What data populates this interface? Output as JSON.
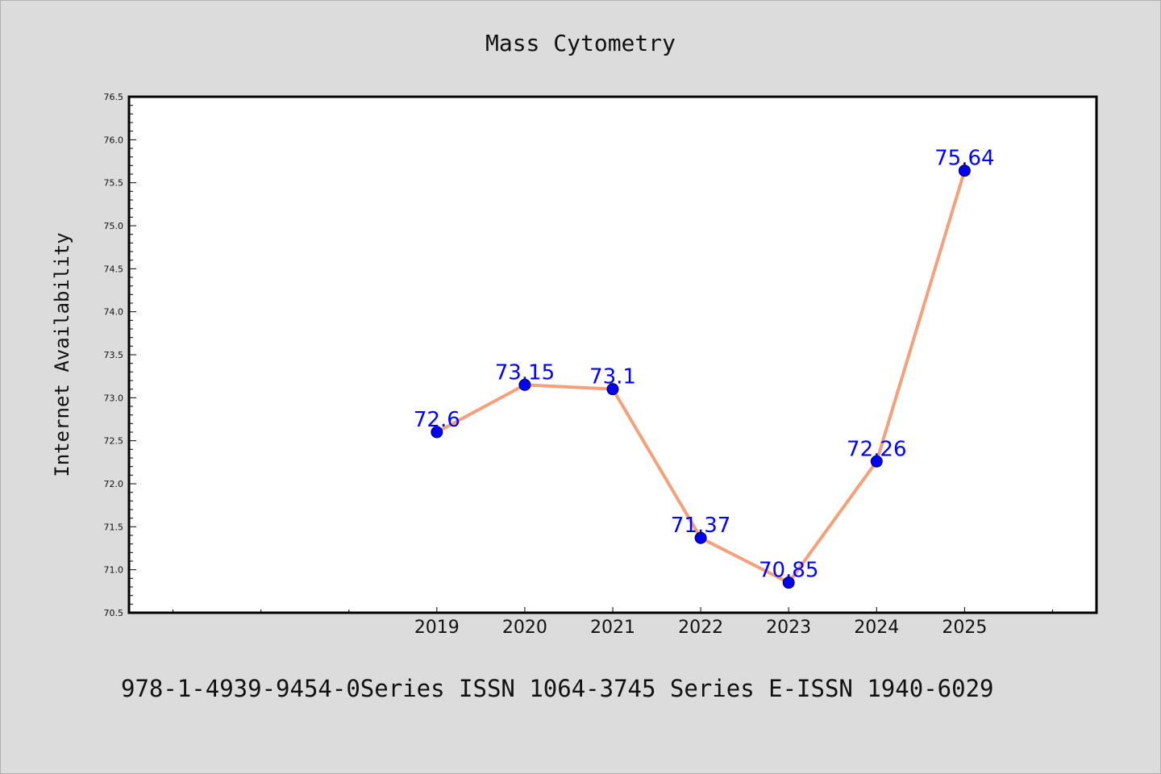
{
  "chart_data": {
    "type": "line",
    "title": "Mass Cytometry",
    "ylabel": "Internet Availability",
    "xlabel": "",
    "x": [
      "2019",
      "2020",
      "2021",
      "2022",
      "2023",
      "2024",
      "2025"
    ],
    "x_range": [
      2015.5,
      2026.5
    ],
    "series": [
      {
        "values": [
          72.6,
          73.15,
          73.1,
          71.37,
          70.85,
          72.26,
          75.64
        ],
        "labels": [
          "72.6",
          "73.15",
          "73.1",
          "71.37",
          "70.85",
          "72.26",
          "75.64"
        ]
      }
    ],
    "ylim": [
      70.5,
      76.5
    ],
    "yticks": [
      "70.5",
      "71.0",
      "71.5",
      "72.0",
      "72.5",
      "73.0",
      "73.5",
      "74.0",
      "74.5",
      "75.0",
      "75.5",
      "76.0",
      "76.5"
    ],
    "grid": false,
    "line_color": "#f4a07a",
    "marker_color": "#0000ff",
    "label_color": "#0000ff"
  },
  "footer": "978-1-4939-9454-0Series ISSN 1064-3745 Series E-ISSN 1940-6029"
}
